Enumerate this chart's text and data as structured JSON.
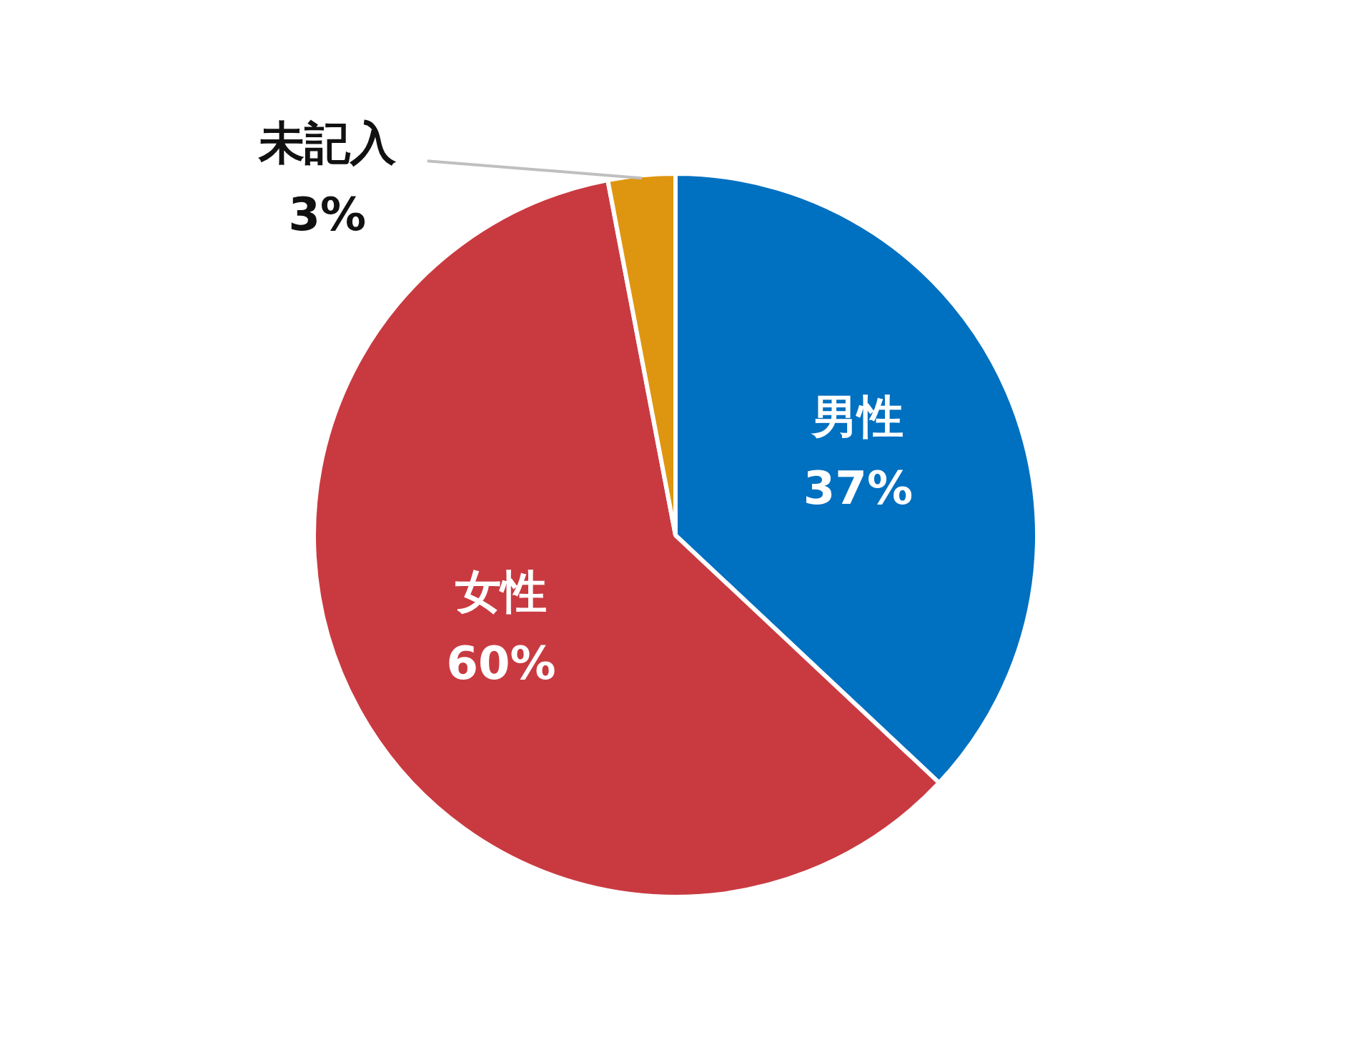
{
  "chart_data": {
    "type": "pie",
    "categories": [
      "男性",
      "女性",
      "未記入"
    ],
    "values": [
      37,
      60,
      3
    ],
    "colors": [
      "#0070c0",
      "#c93a40",
      "#de9610"
    ],
    "value_labels": [
      "37%",
      "60%",
      "3%"
    ],
    "legend": false
  }
}
